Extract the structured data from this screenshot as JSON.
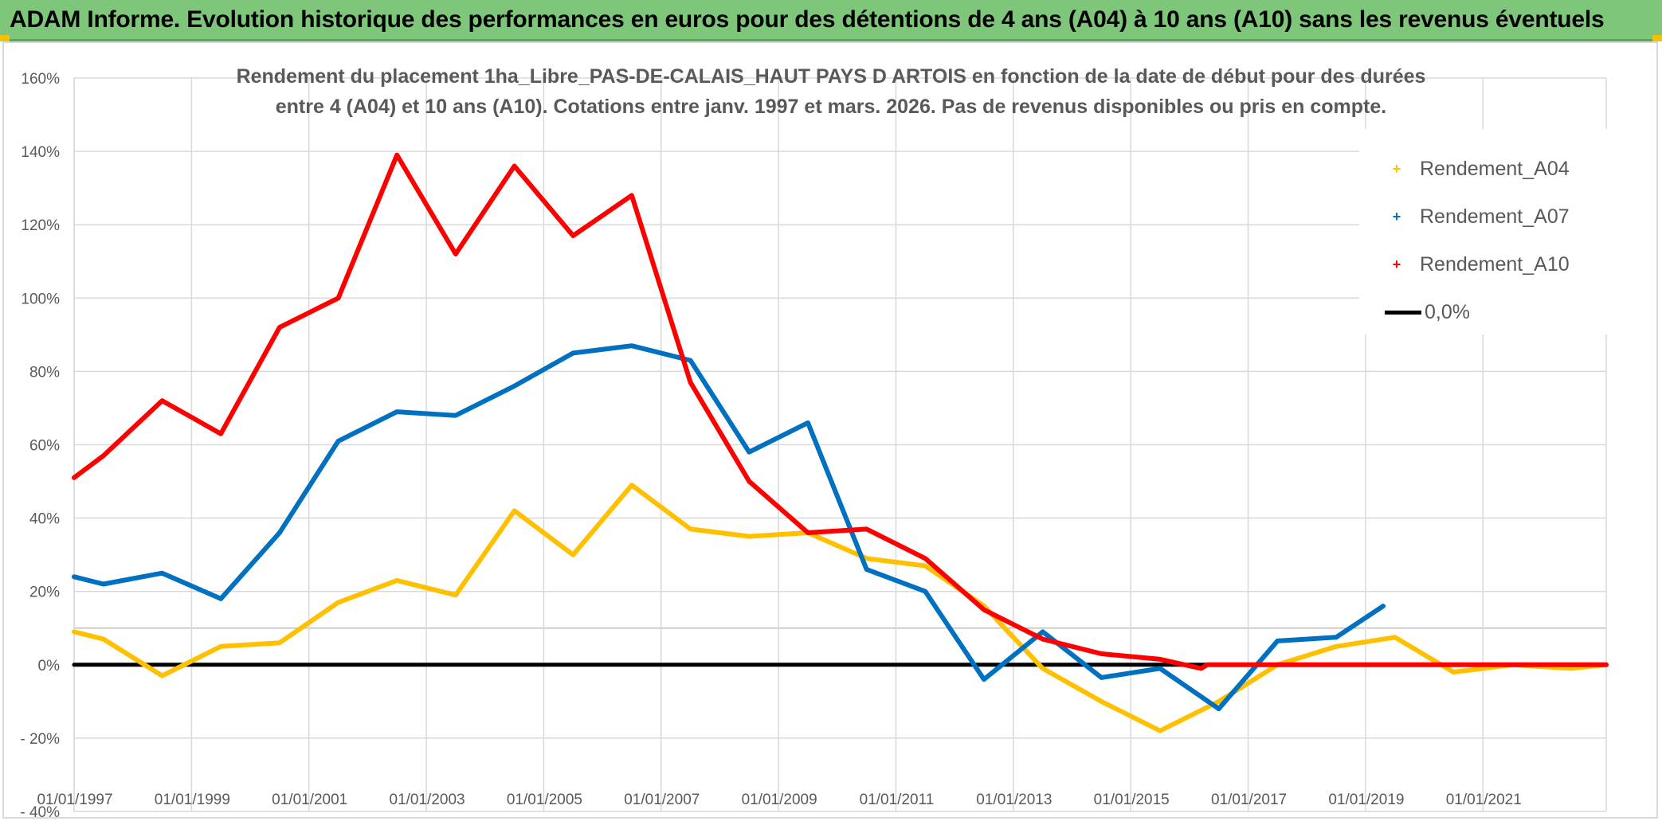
{
  "banner": {
    "title": "ADAM Informe. Evolution historique des performances en euros pour des détentions de 4 ans (A04) à 10 ans (A10) sans les revenus éventuels",
    "color": "#7dc67a"
  },
  "chart_data": {
    "type": "line",
    "title_line1": "Rendement du placement 1ha_Libre_PAS-DE-CALAIS_HAUT PAYS D ARTOIS en fonction de la date de début pour des durées",
    "title_line2": "entre 4 (A04) et 10 ans (A10). Cotations entre janv. 1997 et mars. 2026. Pas de revenus disponibles ou pris en compte.",
    "xlabel": "",
    "ylabel": "",
    "xlim": [
      1997,
      2023.1
    ],
    "ylim": [
      -40,
      160
    ],
    "grid": true,
    "x_ticks": [
      1997,
      1999,
      2001,
      2003,
      2005,
      2007,
      2009,
      2011,
      2013,
      2015,
      2017,
      2019,
      2021
    ],
    "x_tick_labels": [
      "01/01/1997",
      "01/01/1999",
      "01/01/2001",
      "01/01/2003",
      "01/01/2005",
      "01/01/2007",
      "01/01/2009",
      "01/01/2011",
      "01/01/2013",
      "01/01/2015",
      "01/01/2017",
      "01/01/2019",
      "01/01/2021"
    ],
    "y_ticks": [
      -40,
      -20,
      0,
      20,
      40,
      60,
      80,
      100,
      120,
      140,
      160
    ],
    "y_tick_labels": [
      "- 40%",
      "- 20%",
      "0%",
      "20%",
      "40%",
      "60%",
      "80%",
      "100%",
      "120%",
      "140%",
      "160%"
    ],
    "legend_position": "top-right",
    "series": [
      {
        "name": "Rendement_A04",
        "color": "#ffc000",
        "points": [
          [
            1997.0,
            9
          ],
          [
            1997.5,
            7
          ],
          [
            1998.5,
            -3
          ],
          [
            1999.5,
            5
          ],
          [
            2000.5,
            6
          ],
          [
            2001.5,
            17
          ],
          [
            2002.5,
            23
          ],
          [
            2003.5,
            19
          ],
          [
            2004.5,
            42
          ],
          [
            2005.5,
            30
          ],
          [
            2006.5,
            49
          ],
          [
            2007.5,
            37
          ],
          [
            2008.5,
            35
          ],
          [
            2009.5,
            36
          ],
          [
            2010.5,
            29
          ],
          [
            2011.5,
            27
          ],
          [
            2012.5,
            16
          ],
          [
            2013.5,
            -1
          ],
          [
            2014.5,
            -10
          ],
          [
            2015.5,
            -18
          ],
          [
            2016.5,
            -10
          ],
          [
            2017.5,
            0
          ],
          [
            2018.5,
            5
          ],
          [
            2019.5,
            7.5
          ],
          [
            2020.5,
            -2
          ],
          [
            2021.5,
            0
          ],
          [
            2022.5,
            -1
          ],
          [
            2023.1,
            0
          ]
        ]
      },
      {
        "name": "Rendement_A07",
        "color": "#0070c0",
        "points": [
          [
            1997.0,
            24
          ],
          [
            1997.5,
            22
          ],
          [
            1998.5,
            25
          ],
          [
            1999.5,
            18
          ],
          [
            2000.5,
            36
          ],
          [
            2001.5,
            61
          ],
          [
            2002.5,
            69
          ],
          [
            2003.5,
            68
          ],
          [
            2004.5,
            76
          ],
          [
            2005.5,
            85
          ],
          [
            2006.5,
            87
          ],
          [
            2007.5,
            83
          ],
          [
            2008.5,
            58
          ],
          [
            2009.5,
            66
          ],
          [
            2010.5,
            26
          ],
          [
            2011.5,
            20
          ],
          [
            2012.5,
            -4
          ],
          [
            2013.5,
            9
          ],
          [
            2014.5,
            -3.5
          ],
          [
            2015.5,
            -1
          ],
          [
            2016.5,
            -12
          ],
          [
            2017.5,
            6.5
          ],
          [
            2018.5,
            7.5
          ],
          [
            2019.3,
            16
          ]
        ]
      },
      {
        "name": "Rendement_A10",
        "color": "#ff0000",
        "points": [
          [
            1997.0,
            51
          ],
          [
            1997.5,
            57
          ],
          [
            1998.5,
            72
          ],
          [
            1999.5,
            63
          ],
          [
            2000.5,
            92
          ],
          [
            2001.5,
            100
          ],
          [
            2002.5,
            139
          ],
          [
            2003.5,
            112
          ],
          [
            2004.5,
            136
          ],
          [
            2005.5,
            117
          ],
          [
            2006.5,
            128
          ],
          [
            2007.5,
            77
          ],
          [
            2008.5,
            50
          ],
          [
            2009.5,
            36
          ],
          [
            2010.5,
            37
          ],
          [
            2011.5,
            29
          ],
          [
            2012.5,
            15
          ],
          [
            2013.5,
            7
          ],
          [
            2014.5,
            3
          ],
          [
            2015.5,
            1.5
          ],
          [
            2016.2,
            -1
          ],
          [
            2016.3,
            0
          ],
          [
            2023.1,
            0
          ]
        ]
      },
      {
        "name": "0,0%",
        "color": "#000000",
        "points": [
          [
            1997.0,
            0
          ],
          [
            2023.1,
            0
          ]
        ]
      }
    ]
  }
}
